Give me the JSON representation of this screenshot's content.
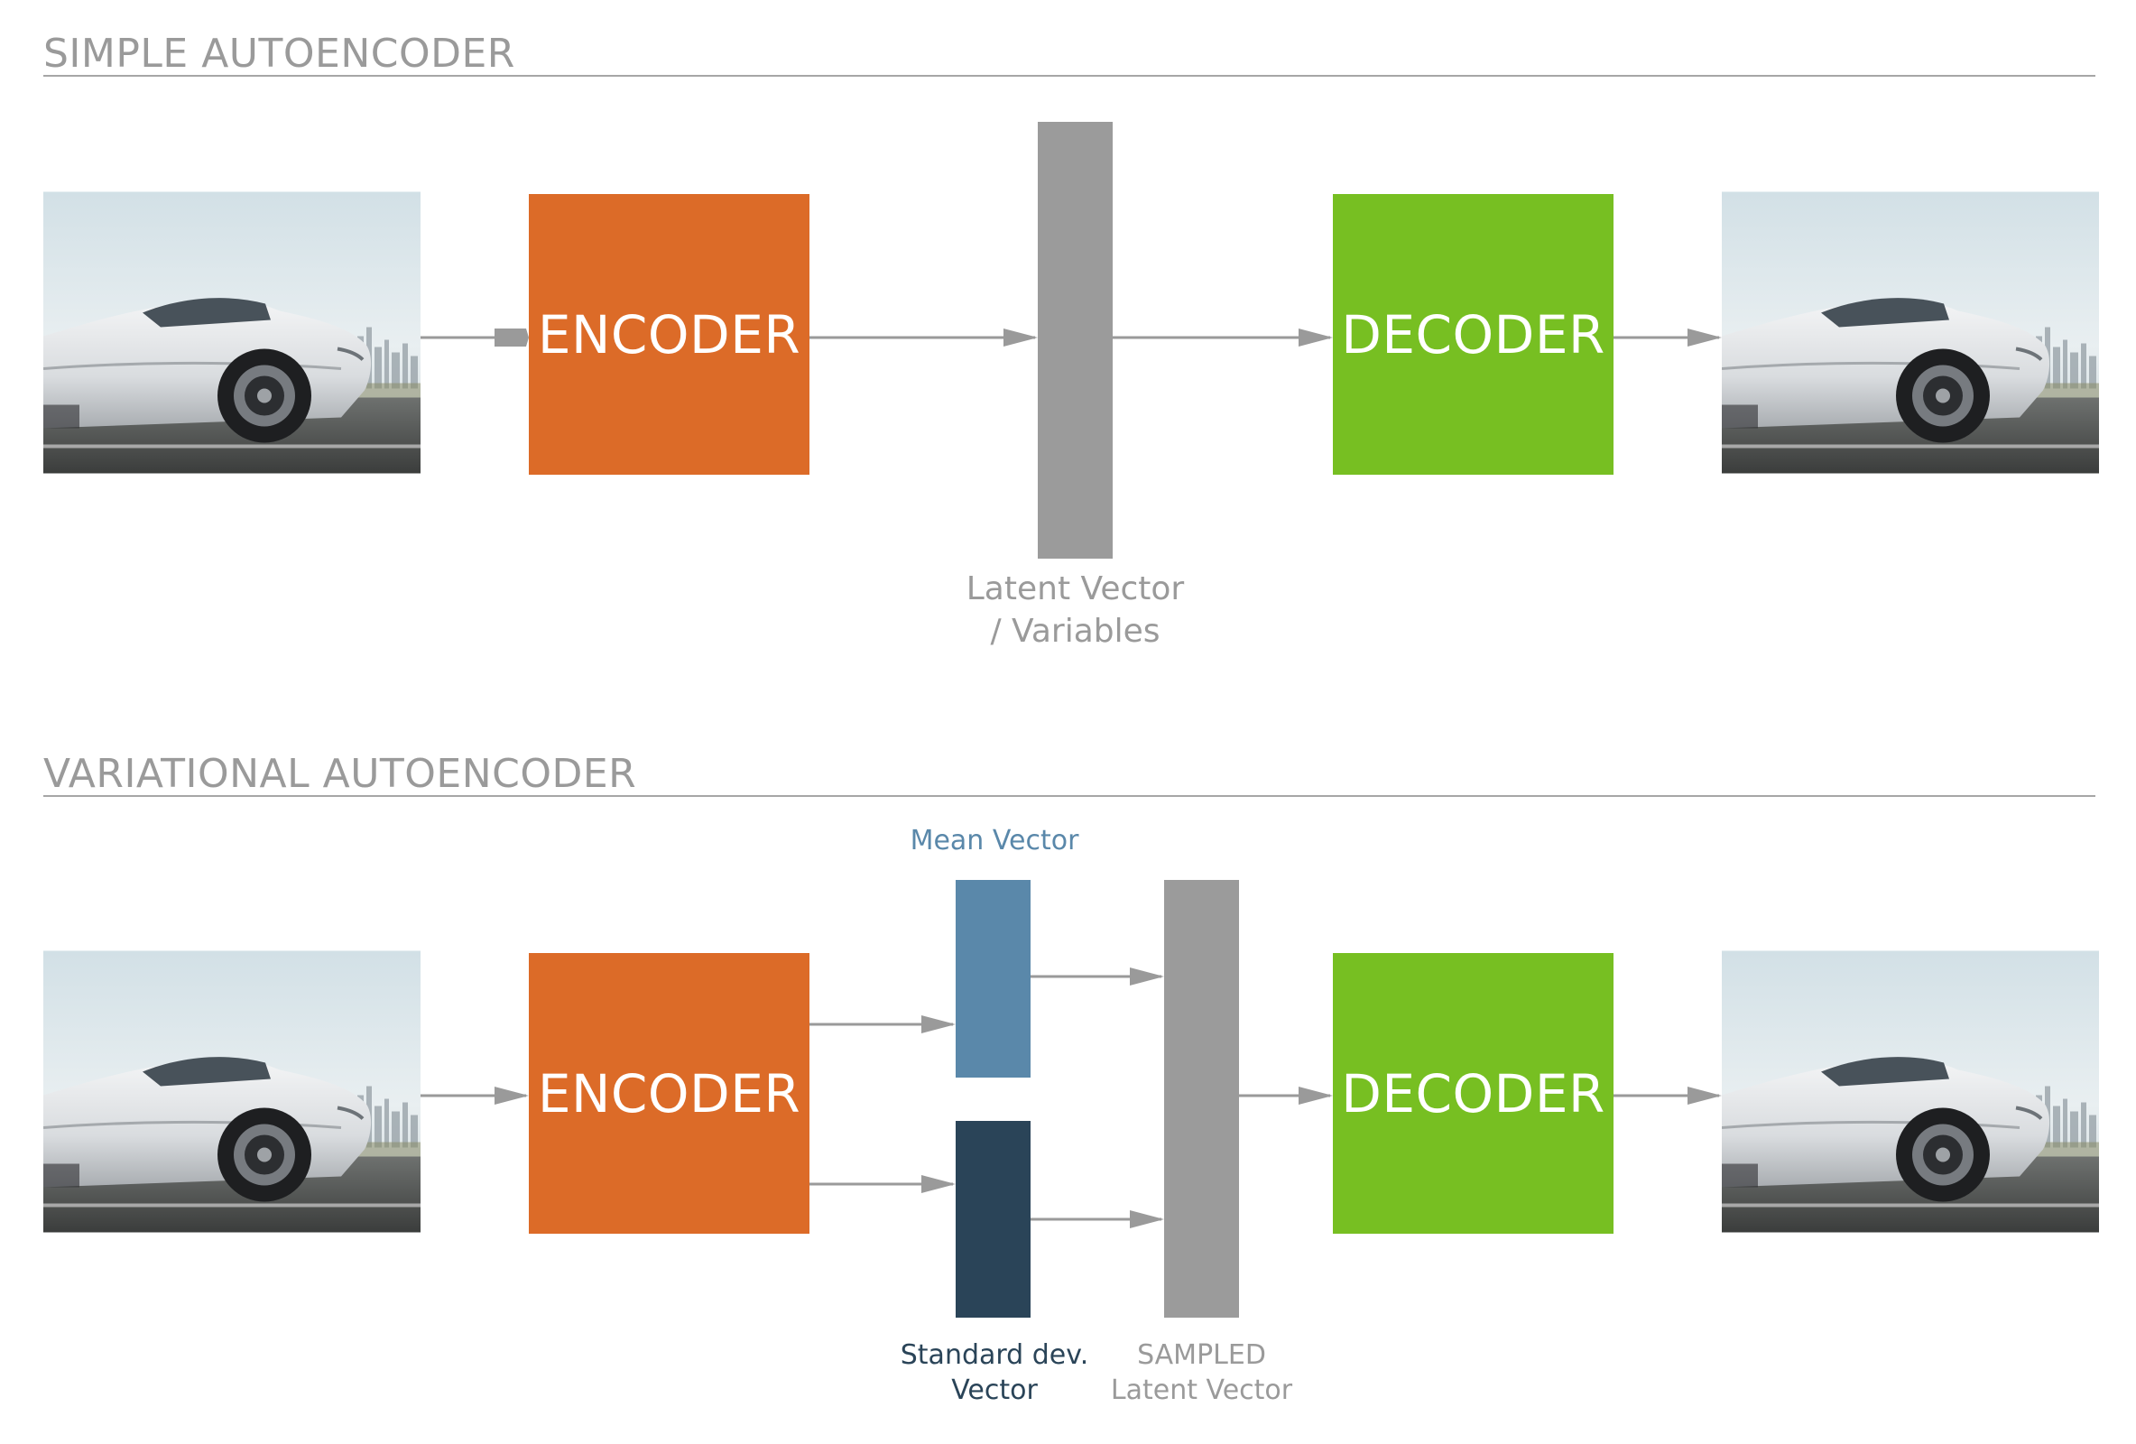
{
  "sections": {
    "simple": {
      "title": "SIMPLE AUTOENCODER",
      "encoder": "ENCODER",
      "decoder": "DECODER",
      "latent_label": [
        "Latent Vector",
        "/ Variables"
      ]
    },
    "variational": {
      "title": "VARIATIONAL AUTOENCODER",
      "encoder": "ENCODER",
      "decoder": "DECODER",
      "mean_label": "Mean Vector",
      "std_label": [
        "Standard dev.",
        "Vector"
      ],
      "sampled_label": [
        "SAMPLED",
        "Latent Vector"
      ]
    }
  },
  "colors": {
    "encoder": "#dc6b28",
    "decoder": "#77bf22",
    "latent": "#9b9b9b",
    "mean": "#5a88aa",
    "std": "#2a4458",
    "arrow": "#9a9a9a",
    "title": "#9a9a9a"
  },
  "icons": {
    "input_image": "car-photo",
    "output_image": "car-photo"
  }
}
